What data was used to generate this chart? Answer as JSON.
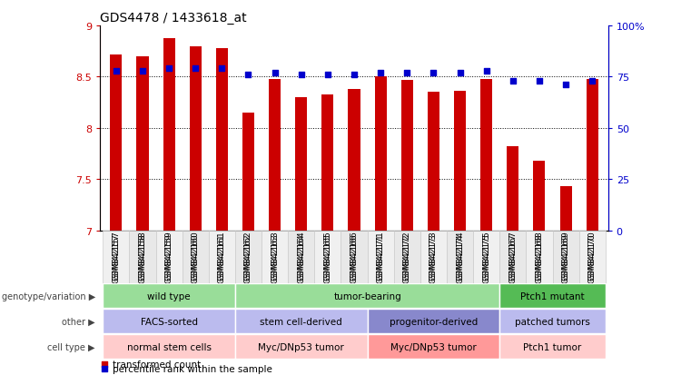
{
  "title": "GDS4478 / 1433618_at",
  "samples": [
    "GSM842157",
    "GSM842158",
    "GSM842159",
    "GSM842160",
    "GSM842161",
    "GSM842162",
    "GSM842163",
    "GSM842164",
    "GSM842165",
    "GSM842166",
    "GSM842171",
    "GSM842172",
    "GSM842173",
    "GSM842174",
    "GSM842175",
    "GSM842167",
    "GSM842168",
    "GSM842169",
    "GSM842170"
  ],
  "bar_values": [
    8.72,
    8.7,
    8.88,
    8.8,
    8.78,
    8.15,
    8.48,
    8.3,
    8.33,
    8.38,
    8.5,
    8.47,
    8.35,
    8.36,
    8.48,
    7.82,
    7.68,
    7.43,
    8.48
  ],
  "dot_values": [
    78,
    78,
    79,
    79,
    79,
    76,
    77,
    76,
    76,
    76,
    77,
    77,
    77,
    77,
    78,
    73,
    73,
    71,
    73
  ],
  "ylim_left": [
    7,
    9
  ],
  "ylim_right": [
    0,
    100
  ],
  "yticks_left": [
    7,
    7.5,
    8,
    8.5,
    9
  ],
  "yticks_right": [
    0,
    25,
    50,
    75,
    100
  ],
  "bar_color": "#CC0000",
  "dot_color": "#0000CC",
  "bg_color": "#FFFFFF",
  "annotation_rows": [
    {
      "label": "genotype/variation",
      "groups": [
        {
          "text": "wild type",
          "start": 0,
          "end": 4,
          "color": "#99DD99"
        },
        {
          "text": "tumor-bearing",
          "start": 5,
          "end": 14,
          "color": "#99DD99"
        },
        {
          "text": "Ptch1 mutant",
          "start": 15,
          "end": 18,
          "color": "#55BB55"
        }
      ]
    },
    {
      "label": "other",
      "groups": [
        {
          "text": "FACS-sorted",
          "start": 0,
          "end": 4,
          "color": "#BBBBEE"
        },
        {
          "text": "stem cell-derived",
          "start": 5,
          "end": 9,
          "color": "#BBBBEE"
        },
        {
          "text": "progenitor-derived",
          "start": 10,
          "end": 14,
          "color": "#8888CC"
        },
        {
          "text": "patched tumors",
          "start": 15,
          "end": 18,
          "color": "#BBBBEE"
        }
      ]
    },
    {
      "label": "cell type",
      "groups": [
        {
          "text": "normal stem cells",
          "start": 0,
          "end": 4,
          "color": "#FFCCCC"
        },
        {
          "text": "Myc/DNp53 tumor",
          "start": 5,
          "end": 9,
          "color": "#FFCCCC"
        },
        {
          "text": "Myc/DNp53 tumor",
          "start": 10,
          "end": 14,
          "color": "#FF9999"
        },
        {
          "text": "Ptch1 tumor",
          "start": 15,
          "end": 18,
          "color": "#FFCCCC"
        }
      ]
    }
  ],
  "legend": [
    {
      "label": "transformed count",
      "color": "#CC0000"
    },
    {
      "label": "percentile rank within the sample",
      "color": "#0000CC"
    }
  ]
}
